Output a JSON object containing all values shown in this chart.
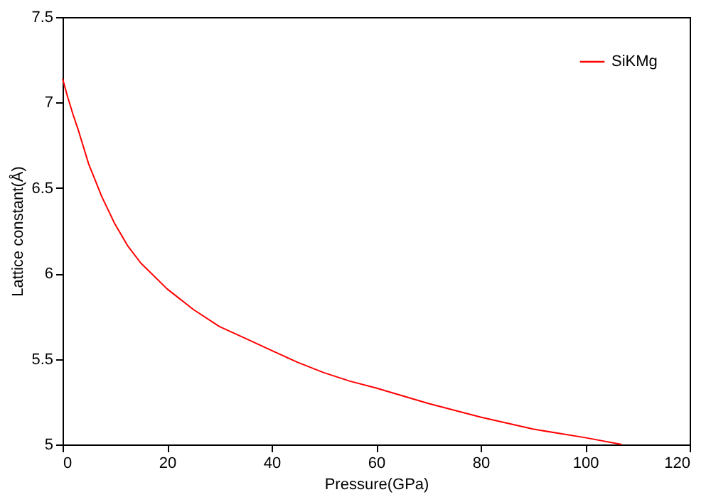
{
  "chart_data": {
    "type": "line",
    "xlabel": "Pressure(GPa)",
    "ylabel": "Lattice constant(Å)",
    "x": [
      0,
      1,
      2,
      3,
      5,
      7.5,
      10,
      12.5,
      15,
      20,
      25,
      30,
      35,
      40,
      45,
      50,
      55,
      60,
      70,
      80,
      90,
      100,
      107
    ],
    "series": [
      {
        "name": "SiKMg",
        "color": "#ff0000",
        "values": [
          7.14,
          7.03,
          6.93,
          6.84,
          6.64,
          6.45,
          6.29,
          6.16,
          6.06,
          5.91,
          5.79,
          5.69,
          5.62,
          5.55,
          5.48,
          5.42,
          5.37,
          5.33,
          5.24,
          5.16,
          5.09,
          5.04,
          5.0
        ]
      }
    ],
    "xlim": [
      0,
      120
    ],
    "xticks": [
      0,
      20,
      40,
      60,
      80,
      100,
      120
    ],
    "ylim": [
      5,
      7.5
    ],
    "yticks": [
      5,
      5.5,
      6,
      6.5,
      7,
      7.5
    ],
    "grid": false,
    "legend": "top right",
    "marker": "none",
    "line_style": "solid"
  }
}
